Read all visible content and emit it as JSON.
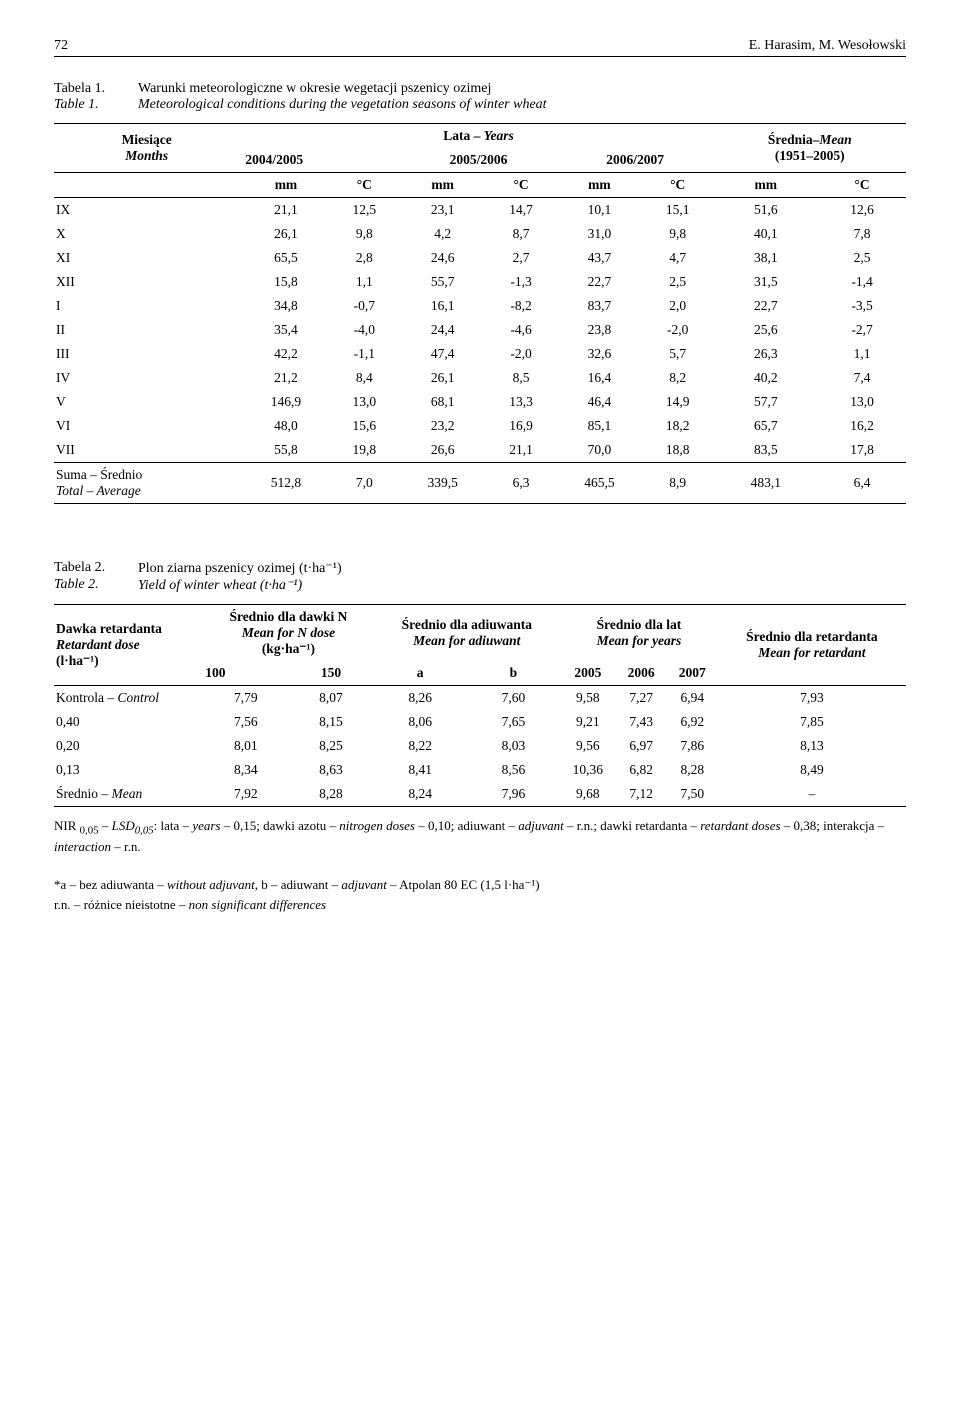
{
  "page": {
    "number": "72",
    "author": "E. Harasim, M. Wesołowski"
  },
  "table1": {
    "caption_label_pl": "Tabela 1.",
    "caption_label_en": "Table 1.",
    "caption_pl": "Warunki meteorologiczne w okresie wegetacji pszenicy ozimej",
    "caption_en": "Meteorological conditions during the vegetation seasons of winter wheat",
    "head": {
      "months_pl": "Miesiące",
      "months_en": "Months",
      "years_pl": "Lata – ",
      "years_en": "Years",
      "mean_pl": "Średnia–",
      "mean_en": "Mean",
      "mean_range": "(1951–2005)",
      "y1": "2004/2005",
      "y2": "2005/2006",
      "y3": "2006/2007",
      "mm": "mm",
      "degc": "°C"
    },
    "rows": [
      {
        "m": "IX",
        "c": [
          "21,1",
          "12,5",
          "23,1",
          "14,7",
          "10,1",
          "15,1",
          "51,6",
          "12,6"
        ]
      },
      {
        "m": "X",
        "c": [
          "26,1",
          "9,8",
          "4,2",
          "8,7",
          "31,0",
          "9,8",
          "40,1",
          "7,8"
        ]
      },
      {
        "m": "XI",
        "c": [
          "65,5",
          "2,8",
          "24,6",
          "2,7",
          "43,7",
          "4,7",
          "38,1",
          "2,5"
        ]
      },
      {
        "m": "XII",
        "c": [
          "15,8",
          "1,1",
          "55,7",
          "-1,3",
          "22,7",
          "2,5",
          "31,5",
          "-1,4"
        ]
      },
      {
        "m": "I",
        "c": [
          "34,8",
          "-0,7",
          "16,1",
          "-8,2",
          "83,7",
          "2,0",
          "22,7",
          "-3,5"
        ]
      },
      {
        "m": "II",
        "c": [
          "35,4",
          "-4,0",
          "24,4",
          "-4,6",
          "23,8",
          "-2,0",
          "25,6",
          "-2,7"
        ]
      },
      {
        "m": "III",
        "c": [
          "42,2",
          "-1,1",
          "47,4",
          "-2,0",
          "32,6",
          "5,7",
          "26,3",
          "1,1"
        ]
      },
      {
        "m": "IV",
        "c": [
          "21,2",
          "8,4",
          "26,1",
          "8,5",
          "16,4",
          "8,2",
          "40,2",
          "7,4"
        ]
      },
      {
        "m": "V",
        "c": [
          "146,9",
          "13,0",
          "68,1",
          "13,3",
          "46,4",
          "14,9",
          "57,7",
          "13,0"
        ]
      },
      {
        "m": "VI",
        "c": [
          "48,0",
          "15,6",
          "23,2",
          "16,9",
          "85,1",
          "18,2",
          "65,7",
          "16,2"
        ]
      },
      {
        "m": "VII",
        "c": [
          "55,8",
          "19,8",
          "26,6",
          "21,1",
          "70,0",
          "18,8",
          "83,5",
          "17,8"
        ]
      }
    ],
    "sum": {
      "label_pl": "Suma – Średnio",
      "label_en": "Total – Average",
      "c": [
        "512,8",
        "7,0",
        "339,5",
        "6,3",
        "465,5",
        "8,9",
        "483,1",
        "6,4"
      ]
    }
  },
  "table2": {
    "caption_label_pl": "Tabela 2.",
    "caption_label_en": "Table 2.",
    "caption_pl": "Plon ziarna pszenicy ozimej (t·ha⁻¹)",
    "caption_en": "Yield of winter wheat (t·ha⁻¹)",
    "head": {
      "dose_pl": "Dawka retardanta",
      "dose_en": "Retardant dose",
      "dose_unit": "(l·ha⁻¹)",
      "meanN_pl": "Średnio dla dawki N",
      "meanN_en": "Mean for N dose",
      "meanN_unit": "(kg·ha⁻¹)",
      "meanAdj_pl": "Średnio dla adiuwanta",
      "meanAdj_en": "Mean for adiuwant",
      "meanYears_pl": "Średnio dla lat",
      "meanYears_en": "Mean for years",
      "meanRet_pl": "Średnio dla retardanta",
      "meanRet_en": "Mean for retardant",
      "n100": "100",
      "n150": "150",
      "a": "a",
      "b": "b",
      "y05": "2005",
      "y06": "2006",
      "y07": "2007"
    },
    "rows": [
      {
        "label_pl": "Kontrola – ",
        "label_en": "Control",
        "c": [
          "7,79",
          "8,07",
          "8,26",
          "7,60",
          "9,58",
          "7,27",
          "6,94",
          "7,93"
        ]
      },
      {
        "label": "0,40",
        "c": [
          "7,56",
          "8,15",
          "8,06",
          "7,65",
          "9,21",
          "7,43",
          "6,92",
          "7,85"
        ]
      },
      {
        "label": "0,20",
        "c": [
          "8,01",
          "8,25",
          "8,22",
          "8,03",
          "9,56",
          "6,97",
          "7,86",
          "8,13"
        ]
      },
      {
        "label": "0,13",
        "c": [
          "8,34",
          "8,63",
          "8,41",
          "8,56",
          "10,36",
          "6,82",
          "8,28",
          "8,49"
        ]
      }
    ],
    "mean": {
      "label_pl": "Średnio – ",
      "label_en": "Mean",
      "c": [
        "7,92",
        "8,28",
        "8,24",
        "7,96",
        "9,68",
        "7,12",
        "7,50",
        "–"
      ]
    },
    "footnote1_a": "NIR ",
    "footnote1_b": "0,05",
    "footnote1_c": " – LSD",
    "footnote1_d": "0,05",
    "footnote1_e": ": lata – ",
    "footnote1_f": "years",
    "footnote1_g": " – 0,15; dawki azotu – ",
    "footnote1_h": "nitrogen doses",
    "footnote1_i": " – 0,10; adiuwant – ",
    "footnote1_j": "adjuvant",
    "footnote1_k": " – r.n.; dawki retardanta – ",
    "footnote1_l": "retardant doses",
    "footnote1_m": " – 0,38; interakcja – ",
    "footnote1_n": "interaction",
    "footnote1_o": " – r.n.",
    "footnote2_a": "*a – bez adiuwanta – ",
    "footnote2_b": "without adjuvant",
    "footnote2_c": ",  b – adiuwant – ",
    "footnote2_d": "adjuvant",
    "footnote2_e": " – Atpolan 80 EC (1,5 l·ha⁻¹)",
    "footnote3_a": "r.n. – różnice nieistotne – ",
    "footnote3_b": "non significant differences"
  }
}
